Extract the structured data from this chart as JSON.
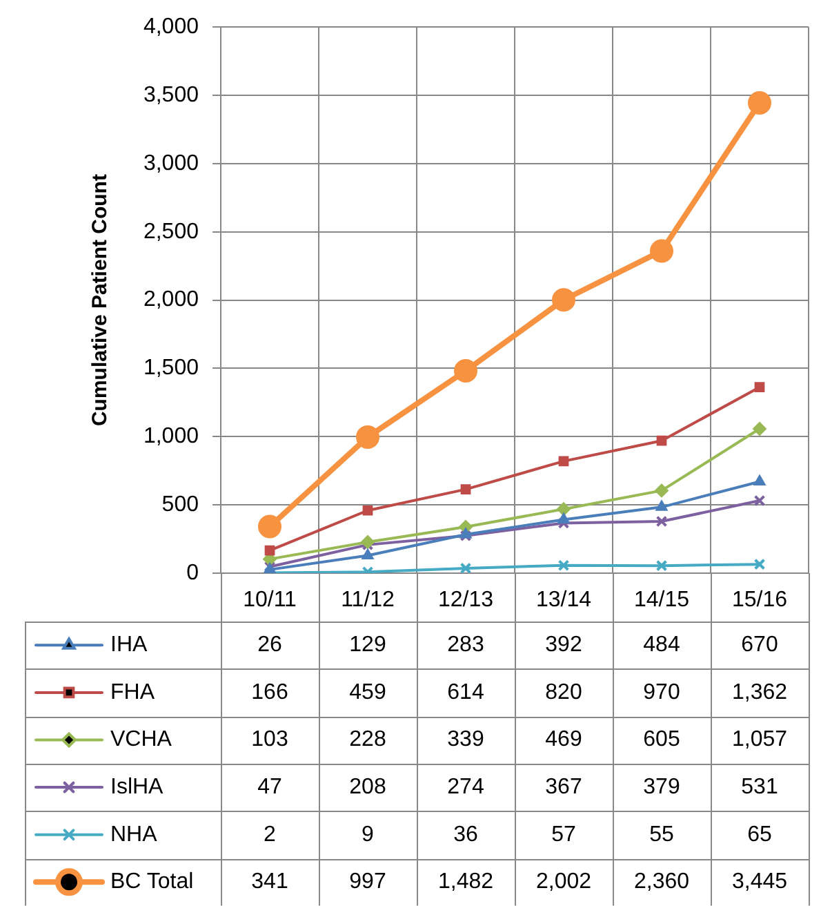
{
  "chart_data": {
    "type": "line",
    "ylabel": "Cumulative Patient Count",
    "categories": [
      "10/11",
      "11/12",
      "12/13",
      "13/14",
      "14/15",
      "15/16"
    ],
    "ylim": [
      0,
      4000
    ],
    "yticks": [
      0,
      500,
      {
        "value": 1000,
        "label": "1,000"
      },
      {
        "value": 1500,
        "label": "1,500"
      },
      {
        "value": 2000,
        "label": "2,000"
      },
      {
        "value": 2500,
        "label": "2,500"
      },
      {
        "value": 3000,
        "label": "3,000"
      },
      {
        "value": 3500,
        "label": "3,500"
      },
      {
        "value": 4000,
        "label": "4,000"
      }
    ],
    "grid": true,
    "legend": "bottom",
    "line_style": "solid",
    "series": [
      {
        "name": "IHA",
        "color": "#4a7ebb",
        "marker": "triangle",
        "values": [
          26,
          129,
          283,
          392,
          484,
          670
        ],
        "value_labels": [
          "26",
          "129",
          "283",
          "392",
          "484",
          "670"
        ]
      },
      {
        "name": "FHA",
        "color": "#be4b48",
        "marker": "square",
        "values": [
          166,
          459,
          614,
          820,
          970,
          1362
        ],
        "value_labels": [
          "166",
          "459",
          "614",
          "820",
          "970",
          "1,362"
        ]
      },
      {
        "name": "VCHA",
        "color": "#98b954",
        "marker": "diamond",
        "values": [
          103,
          228,
          339,
          469,
          605,
          1057
        ],
        "value_labels": [
          "103",
          "228",
          "339",
          "469",
          "605",
          "1,057"
        ]
      },
      {
        "name": "IslHA",
        "color": "#7d60a0",
        "marker": "cross",
        "values": [
          47,
          208,
          274,
          367,
          379,
          531
        ],
        "value_labels": [
          "47",
          "208",
          "274",
          "367",
          "379",
          "531"
        ]
      },
      {
        "name": "NHA",
        "color": "#46aac5",
        "marker": "cross",
        "values": [
          2,
          9,
          36,
          57,
          55,
          65
        ],
        "value_labels": [
          "2",
          "9",
          "36",
          "57",
          "55",
          "65"
        ]
      },
      {
        "name": "BC Total",
        "color": "#f69240",
        "marker": "circle",
        "values": [
          341,
          997,
          1482,
          2002,
          2360,
          3445
        ],
        "value_labels": [
          "341",
          "997",
          "1,482",
          "2,002",
          "2,360",
          "3,445"
        ]
      }
    ]
  }
}
